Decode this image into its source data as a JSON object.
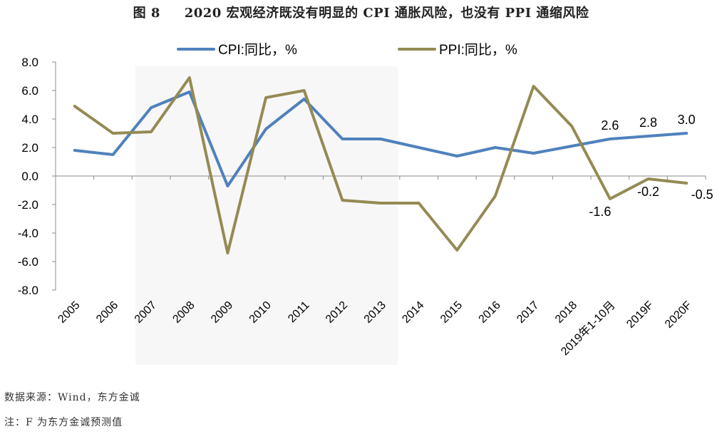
{
  "title": "图 8     2020 宏观经济既没有明显的 CPI 通胀风险，也没有 PPI 通缩风险",
  "source_note": "数据来源：Wind，东方金诚",
  "footnote": "注：F 为东方金诚预测值",
  "chart_data": {
    "type": "line",
    "title": "图 8     2020 宏观经济既没有明显的 CPI 通胀风险，也没有 PPI 通缩风险",
    "categories": [
      "2005",
      "2006",
      "2007",
      "2008",
      "2009",
      "2010",
      "2011",
      "2012",
      "2013",
      "2014",
      "2015",
      "2016",
      "2017",
      "2018",
      "2019年1-10月",
      "2019F",
      "2020F"
    ],
    "ylim": [
      -8,
      8
    ],
    "yticks": [
      "8.0",
      "6.0",
      "4.0",
      "2.0",
      "0.0",
      "-2.0",
      "-4.0",
      "-6.0",
      "-8.0"
    ],
    "ytick_values": [
      8,
      6,
      4,
      2,
      0,
      -2,
      -4,
      -6,
      -8
    ],
    "legend_position": "top",
    "series": [
      {
        "name": "CPI:同比，%",
        "color": "#4f81bd",
        "values": [
          1.8,
          1.5,
          4.8,
          5.9,
          -0.7,
          3.3,
          5.4,
          2.6,
          2.6,
          2.0,
          1.4,
          2.0,
          1.6,
          2.1,
          2.6,
          2.8,
          3.0
        ],
        "labels": {
          "14": "2.6",
          "15": "2.8",
          "16": "3.0"
        }
      },
      {
        "name": "PPI:同比，%",
        "color": "#948a54",
        "values": [
          4.9,
          3.0,
          3.1,
          6.9,
          -5.4,
          5.5,
          6.0,
          -1.7,
          -1.9,
          -1.9,
          -5.2,
          -1.4,
          6.3,
          3.5,
          -1.6,
          -0.2,
          -0.5
        ],
        "labels": {
          "14": "-1.6",
          "15": "-0.2",
          "16": "-0.5"
        }
      }
    ]
  }
}
